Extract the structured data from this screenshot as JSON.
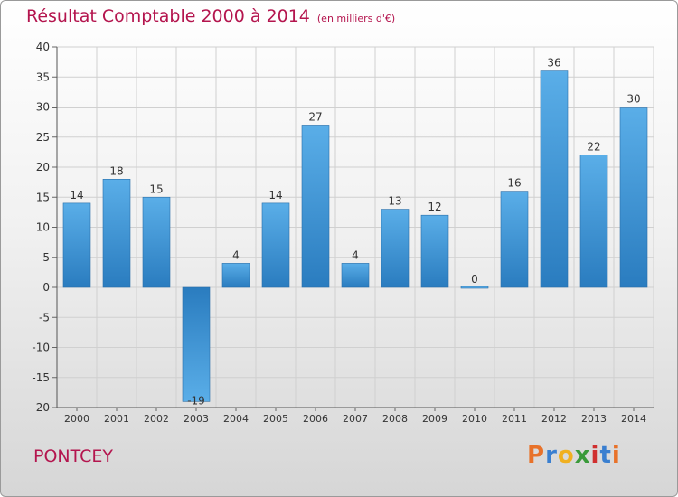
{
  "title": "Résultat Comptable 2000 à 2014",
  "subtitle": "(en milliers d'€)",
  "place_name": "PONTCEY",
  "logo": {
    "letters": [
      "P",
      "r",
      "o",
      "x",
      "i",
      "t",
      "i"
    ],
    "colors": [
      "#e8722a",
      "#3a7fd0",
      "#f0b020",
      "#3a9a3a",
      "#d03030",
      "#3a7fd0",
      "#e8722a"
    ]
  },
  "colors": {
    "title": "#b4154e",
    "bar_light": "#5aaee8",
    "bar_dark": "#2a7cbf"
  },
  "chart_data": {
    "type": "bar",
    "categories": [
      "2000",
      "2001",
      "2002",
      "2003",
      "2004",
      "2005",
      "2006",
      "2007",
      "2008",
      "2009",
      "2010",
      "2011",
      "2012",
      "2013",
      "2014"
    ],
    "values": [
      14,
      18,
      15,
      -19,
      4,
      14,
      27,
      4,
      13,
      12,
      0,
      16,
      36,
      22,
      30
    ],
    "ylim": [
      -20,
      40
    ],
    "yticks": [
      40,
      35,
      30,
      25,
      20,
      15,
      10,
      5,
      0,
      -5,
      -10,
      -15,
      -20
    ],
    "grid": true
  }
}
